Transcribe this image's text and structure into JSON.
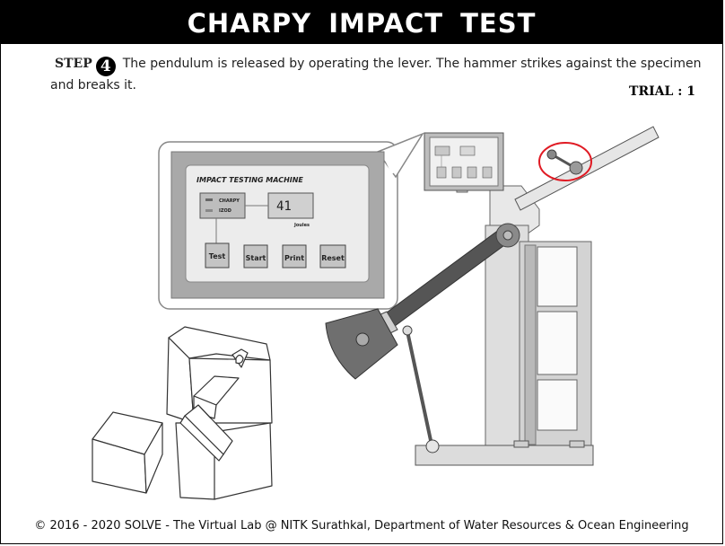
{
  "title": "CHARPY IMPACT TEST",
  "step": {
    "label": "STEP",
    "number": "4",
    "text": "The pendulum is released by operating the lever. The hammer strikes against the specimen and breaks it."
  },
  "trial": "TRIAL : 1",
  "panel": {
    "title": "IMPACT TESTING MACHINE",
    "modes": [
      "CHARPY",
      "IZOD"
    ],
    "reading": "41",
    "unit": "Joules",
    "buttons": [
      "Test",
      "Start",
      "Print",
      "Reset"
    ]
  },
  "footer": "© 2016 - 2020 SOLVE - The Virtual Lab @ NITK Surathkal, Department of Water Resources & Ocean Engineering",
  "colors": {
    "header_bg": "#000000",
    "highlight_ring": "#e01b24",
    "machine_gray": "#d9d9d9",
    "hammer_gray": "#707070"
  }
}
